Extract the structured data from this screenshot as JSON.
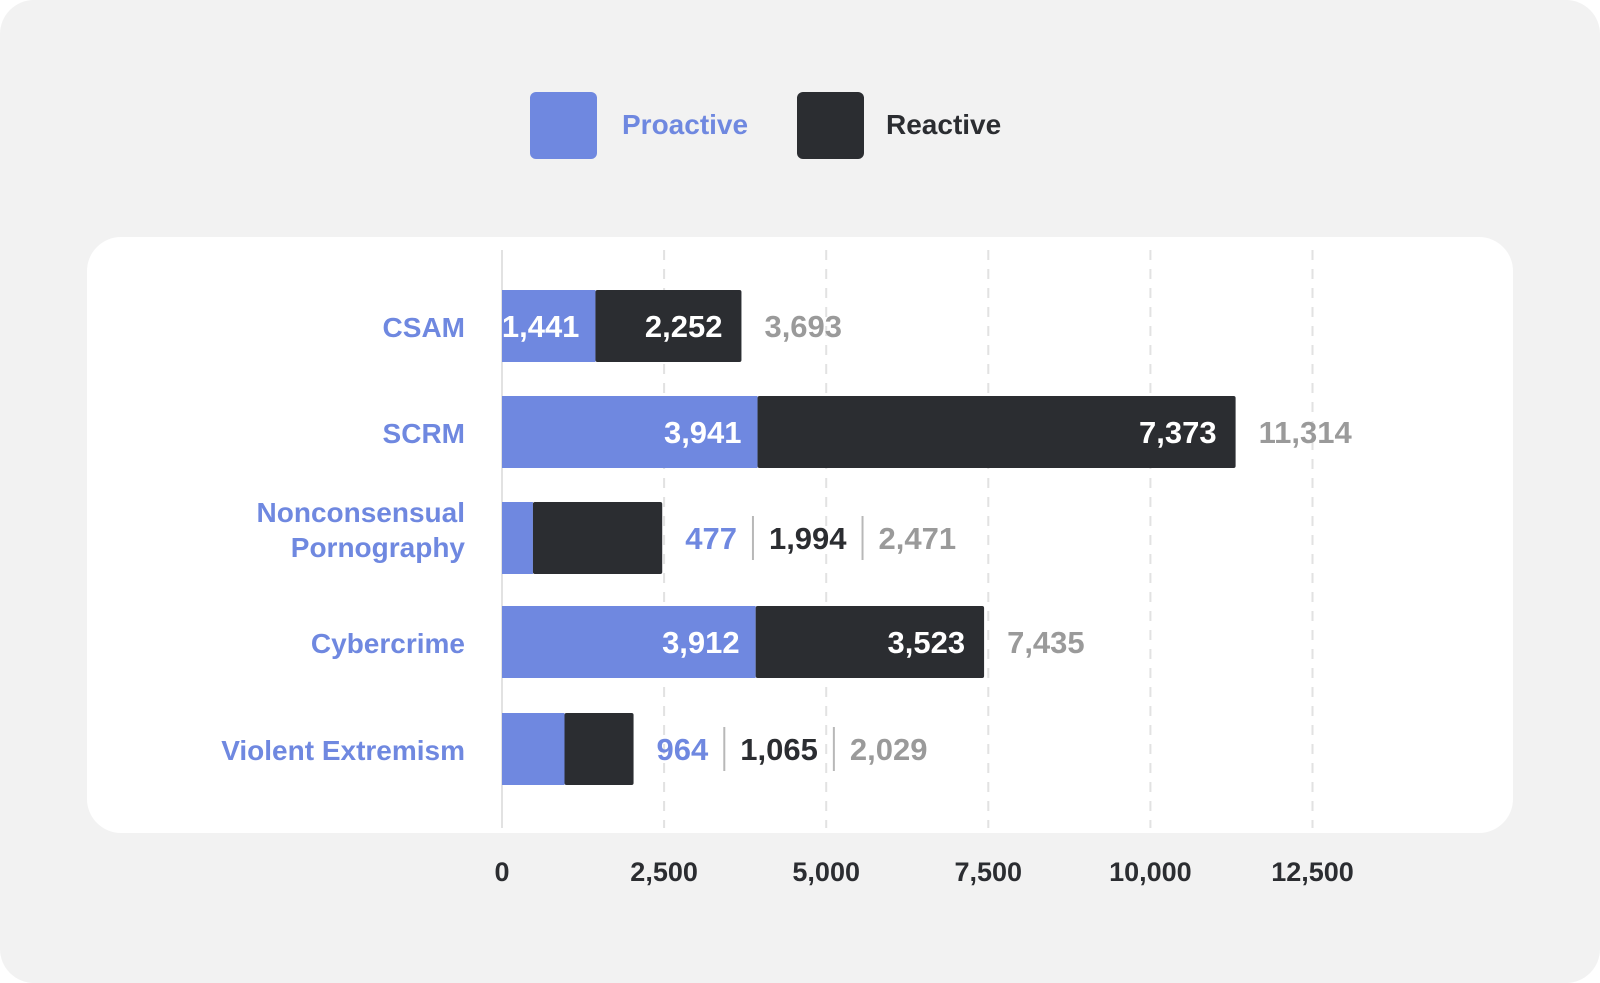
{
  "colors": {
    "proactive": "#6f88e0",
    "reactive": "#2b2d31",
    "total": "#9a9a9a",
    "tick": "#2b2d31",
    "grid": "#e2e2e2"
  },
  "legend": [
    {
      "label": "Proactive",
      "color": "#6f88e0",
      "text_color": "#6f88e0"
    },
    {
      "label": "Reactive",
      "color": "#2b2d31",
      "text_color": "#2b2d31"
    }
  ],
  "chart_data": {
    "type": "bar",
    "orientation": "horizontal",
    "stacked": true,
    "categories": [
      [
        "CSAM"
      ],
      [
        "SCRM"
      ],
      [
        "Nonconsensual",
        "Pornography"
      ],
      [
        "Cybercrime"
      ],
      [
        "Violent Extremism"
      ]
    ],
    "series": [
      {
        "name": "Proactive",
        "values": [
          1441,
          3941,
          477,
          3912,
          964
        ],
        "labels": [
          "1,441",
          "3,941",
          "477",
          "3,912",
          "964"
        ]
      },
      {
        "name": "Reactive",
        "values": [
          2252,
          7373,
          1994,
          3523,
          1065
        ],
        "labels": [
          "2,252",
          "7,373",
          "1,994",
          "3,523",
          "1,065"
        ]
      }
    ],
    "totals": [
      3693,
      11314,
      2471,
      7435,
      2029
    ],
    "total_labels": [
      "3,693",
      "11,314",
      "2,471",
      "7,435",
      "2,029"
    ],
    "label_inside": [
      true,
      true,
      false,
      true,
      false
    ],
    "xticks": [
      0,
      2500,
      5000,
      7500,
      10000,
      12500
    ],
    "xtick_labels": [
      "0",
      "2,500",
      "5,000",
      "7,500",
      "10,000",
      "12,500"
    ],
    "xlim": [
      0,
      12500
    ],
    "grid": "vertical-dashed",
    "legend_position": "top-center"
  }
}
